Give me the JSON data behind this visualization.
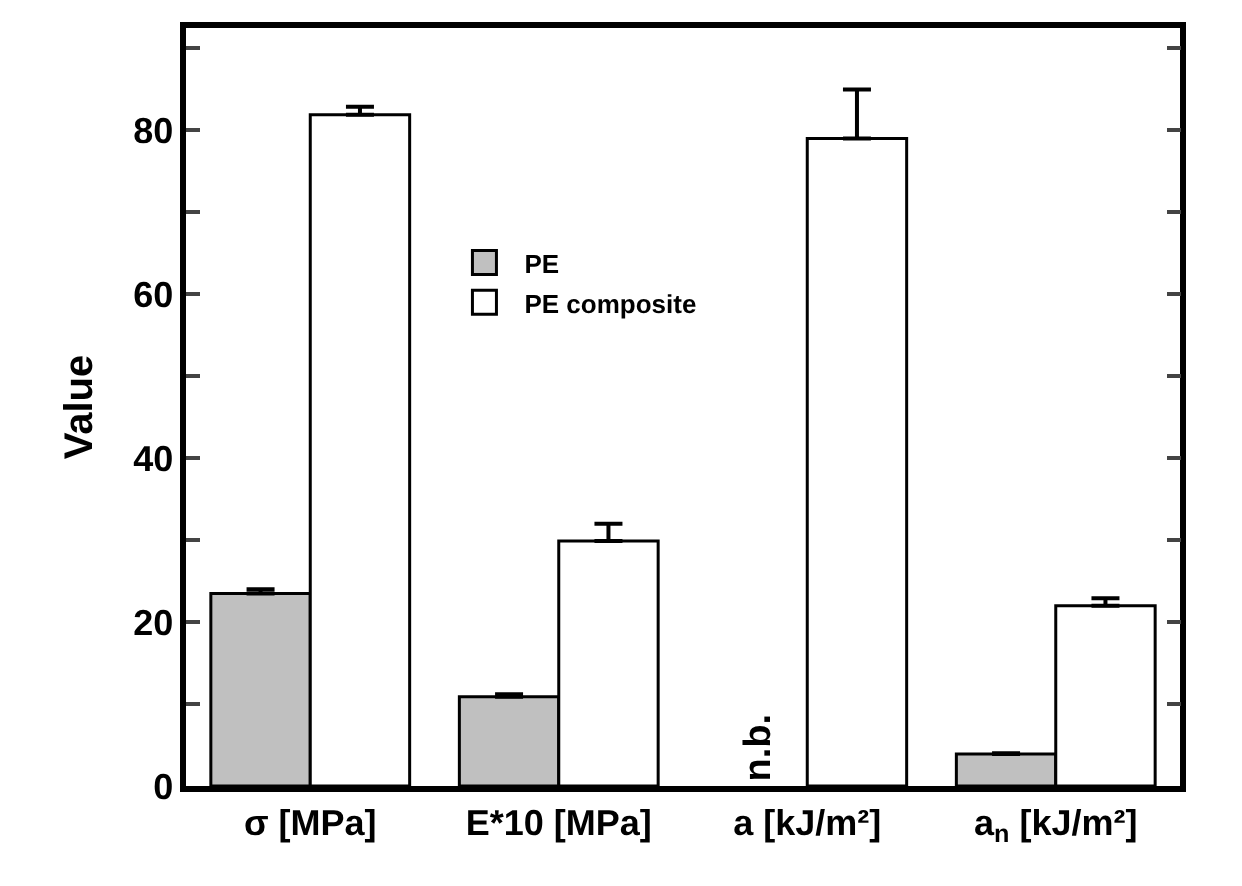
{
  "chart_data": {
    "type": "bar",
    "ylabel": "Value",
    "categories": [
      "σ [MPa]",
      "E*10 [MPa]",
      "a [kJ/m²]",
      "a$_{n}$ [kJ/m²]"
    ],
    "series": [
      {
        "name": "PE",
        "color": "#c0c0c0",
        "values": [
          23.5,
          10.9,
          null,
          3.9
        ],
        "errors": [
          [
            23.5,
            24.0
          ],
          [
            10.9,
            11.2
          ],
          null,
          [
            3.9,
            4.0
          ]
        ]
      },
      {
        "name": "PE composite",
        "color": "#ffffff",
        "values": [
          81.9,
          29.9,
          79.0,
          22.0
        ],
        "errors": [
          [
            81.9,
            82.9
          ],
          [
            29.9,
            32.0
          ],
          [
            79.0,
            85.0
          ],
          [
            22.0,
            22.9
          ]
        ]
      }
    ],
    "annotations": [
      "n.b."
    ],
    "ylim": [
      0,
      92.5
    ],
    "yticks": [
      0,
      {
        "value": 10,
        "label": null
      },
      20,
      {
        "value": 30,
        "label": null
      },
      40,
      {
        "value": 50,
        "label": null
      },
      60,
      {
        "value": 70,
        "label": null
      },
      80,
      {
        "value": 90,
        "label": null
      }
    ],
    "legend": "top"
  }
}
